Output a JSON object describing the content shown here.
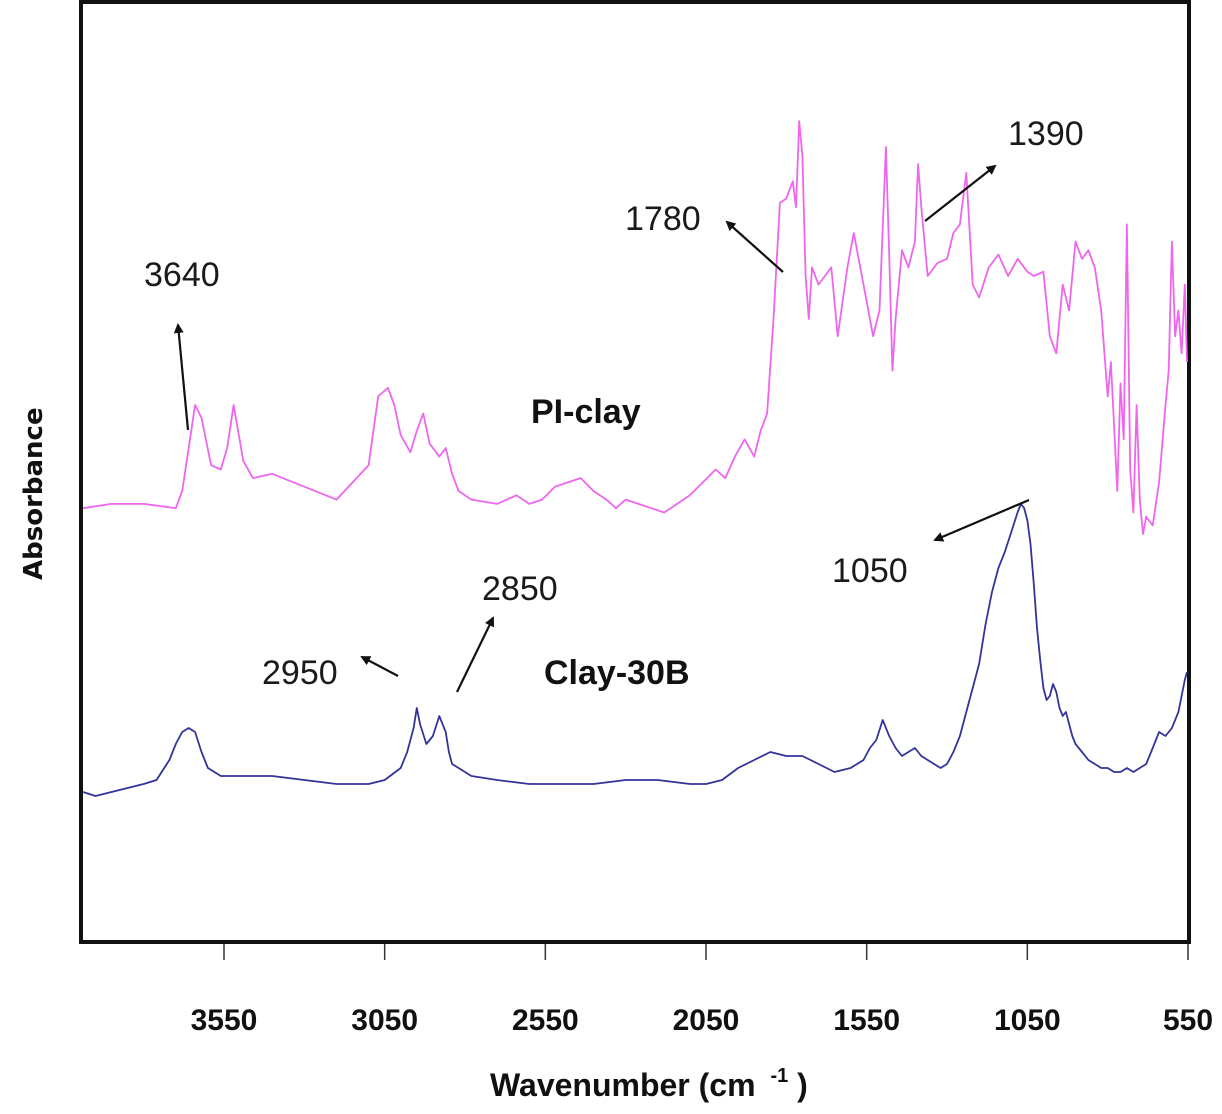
{
  "chart_data": {
    "type": "line",
    "title": "",
    "xlabel": "Wavenumber (cm -1)",
    "xlabel_main": "Wavenumber (cm",
    "xlabel_sup": "-1",
    "xlabel_close": ")",
    "ylabel": "Absorbance",
    "xlim": [
      4000,
      550
    ],
    "x_reversed": true,
    "x_ticks": [
      3550,
      3050,
      2550,
      2050,
      1550,
      1050,
      550
    ],
    "x_tick_labels": [
      "3550",
      "3050",
      "2550",
      "2050",
      "1550",
      "1050",
      "550"
    ],
    "y_ticks": [],
    "grid": false,
    "legend": null,
    "colors": {
      "pi_clay": "#ee66ee",
      "clay_30b": "#333399",
      "axis": "#111111"
    },
    "series": [
      {
        "name": "PI-clay",
        "color": "#ee66ee",
        "x": [
          4000,
          3900,
          3800,
          3700,
          3680,
          3660,
          3640,
          3620,
          3590,
          3560,
          3540,
          3520,
          3490,
          3460,
          3400,
          3300,
          3200,
          3100,
          3070,
          3040,
          3020,
          3000,
          2970,
          2950,
          2930,
          2910,
          2880,
          2860,
          2840,
          2820,
          2780,
          2700,
          2640,
          2600,
          2560,
          2520,
          2480,
          2440,
          2400,
          2360,
          2330,
          2300,
          2260,
          2220,
          2180,
          2140,
          2100,
          2060,
          2020,
          1990,
          1960,
          1930,
          1900,
          1880,
          1860,
          1840,
          1820,
          1800,
          1790,
          1780,
          1770,
          1760,
          1750,
          1740,
          1730,
          1720,
          1700,
          1660,
          1640,
          1610,
          1590,
          1560,
          1530,
          1510,
          1490,
          1480,
          1470,
          1460,
          1440,
          1420,
          1400,
          1390,
          1380,
          1360,
          1330,
          1300,
          1280,
          1260,
          1240,
          1220,
          1200,
          1170,
          1140,
          1110,
          1080,
          1050,
          1030,
          1000,
          980,
          960,
          940,
          920,
          900,
          880,
          860,
          840,
          820,
          800,
          790,
          780,
          770,
          760,
          750,
          740,
          730,
          720,
          710,
          700,
          690,
          680,
          660,
          640,
          620,
          610,
          600,
          590,
          580,
          570,
          560,
          550
        ],
        "y": [
          0.26,
          0.27,
          0.27,
          0.26,
          0.3,
          0.4,
          0.5,
          0.47,
          0.36,
          0.35,
          0.4,
          0.5,
          0.37,
          0.33,
          0.34,
          0.31,
          0.28,
          0.36,
          0.52,
          0.54,
          0.5,
          0.43,
          0.39,
          0.44,
          0.48,
          0.41,
          0.38,
          0.4,
          0.34,
          0.3,
          0.28,
          0.27,
          0.29,
          0.27,
          0.28,
          0.31,
          0.32,
          0.33,
          0.3,
          0.28,
          0.26,
          0.28,
          0.27,
          0.26,
          0.25,
          0.27,
          0.29,
          0.32,
          0.35,
          0.33,
          0.38,
          0.42,
          0.38,
          0.44,
          0.48,
          0.7,
          0.97,
          0.98,
          1.0,
          1.02,
          0.96,
          1.16,
          1.08,
          0.8,
          0.7,
          0.82,
          0.78,
          0.82,
          0.66,
          0.82,
          0.9,
          0.78,
          0.66,
          0.72,
          1.1,
          0.85,
          0.58,
          0.7,
          0.86,
          0.82,
          0.88,
          1.06,
          0.96,
          0.8,
          0.83,
          0.84,
          0.9,
          0.92,
          1.04,
          0.78,
          0.75,
          0.82,
          0.85,
          0.8,
          0.84,
          0.81,
          0.8,
          0.81,
          0.66,
          0.62,
          0.78,
          0.72,
          0.88,
          0.84,
          0.86,
          0.82,
          0.72,
          0.52,
          0.6,
          0.45,
          0.3,
          0.55,
          0.42,
          0.92,
          0.35,
          0.25,
          0.5,
          0.28,
          0.2,
          0.24,
          0.22,
          0.32,
          0.5,
          0.58,
          0.88,
          0.66,
          0.72,
          0.62,
          0.78,
          0.6
        ]
      },
      {
        "name": "Clay-30B",
        "color": "#333399",
        "x": [
          4000,
          3950,
          3900,
          3850,
          3800,
          3760,
          3720,
          3700,
          3680,
          3660,
          3640,
          3620,
          3600,
          3580,
          3560,
          3500,
          3400,
          3300,
          3200,
          3100,
          3050,
          3000,
          2980,
          2960,
          2950,
          2940,
          2920,
          2900,
          2880,
          2860,
          2850,
          2840,
          2820,
          2800,
          2780,
          2700,
          2600,
          2500,
          2400,
          2300,
          2200,
          2100,
          2050,
          2000,
          1950,
          1900,
          1850,
          1800,
          1750,
          1700,
          1650,
          1600,
          1560,
          1540,
          1520,
          1500,
          1480,
          1460,
          1440,
          1420,
          1400,
          1380,
          1360,
          1340,
          1320,
          1300,
          1280,
          1260,
          1240,
          1220,
          1200,
          1180,
          1160,
          1140,
          1120,
          1100,
          1080,
          1070,
          1060,
          1050,
          1040,
          1030,
          1020,
          1010,
          1000,
          990,
          980,
          970,
          960,
          950,
          940,
          930,
          920,
          910,
          900,
          880,
          860,
          840,
          820,
          800,
          780,
          760,
          740,
          720,
          700,
          680,
          660,
          640,
          620,
          600,
          580,
          570,
          560,
          550
        ],
        "y": [
          0.02,
          0.01,
          0.02,
          0.03,
          0.04,
          0.05,
          0.1,
          0.14,
          0.17,
          0.18,
          0.17,
          0.12,
          0.08,
          0.07,
          0.06,
          0.06,
          0.06,
          0.05,
          0.04,
          0.04,
          0.05,
          0.08,
          0.12,
          0.18,
          0.23,
          0.19,
          0.14,
          0.16,
          0.21,
          0.17,
          0.12,
          0.09,
          0.08,
          0.07,
          0.06,
          0.05,
          0.04,
          0.04,
          0.04,
          0.05,
          0.05,
          0.04,
          0.04,
          0.05,
          0.08,
          0.1,
          0.12,
          0.11,
          0.11,
          0.09,
          0.07,
          0.08,
          0.1,
          0.13,
          0.15,
          0.2,
          0.16,
          0.13,
          0.11,
          0.12,
          0.13,
          0.11,
          0.1,
          0.09,
          0.08,
          0.09,
          0.12,
          0.16,
          0.22,
          0.28,
          0.34,
          0.44,
          0.52,
          0.58,
          0.62,
          0.67,
          0.72,
          0.74,
          0.73,
          0.7,
          0.64,
          0.54,
          0.43,
          0.35,
          0.28,
          0.25,
          0.26,
          0.29,
          0.27,
          0.23,
          0.21,
          0.22,
          0.19,
          0.16,
          0.14,
          0.12,
          0.1,
          0.09,
          0.08,
          0.08,
          0.07,
          0.07,
          0.08,
          0.07,
          0.08,
          0.09,
          0.13,
          0.17,
          0.16,
          0.18,
          0.22,
          0.26,
          0.3,
          0.32
        ]
      }
    ],
    "annotations": [
      {
        "text": "3640",
        "target_series": "PI-clay",
        "wavenumber": 3640
      },
      {
        "text": "1780",
        "target_series": "PI-clay",
        "wavenumber": 1780
      },
      {
        "text": "1390",
        "target_series": "PI-clay",
        "wavenumber": 1390
      },
      {
        "text": "2950",
        "target_series": "Clay-30B",
        "wavenumber": 2950
      },
      {
        "text": "2850",
        "target_series": "Clay-30B",
        "wavenumber": 2850
      },
      {
        "text": "1050",
        "target_series": "Clay-30B",
        "wavenumber": 1050
      }
    ],
    "series_labels": [
      "PI-clay",
      "Clay-30B"
    ]
  }
}
